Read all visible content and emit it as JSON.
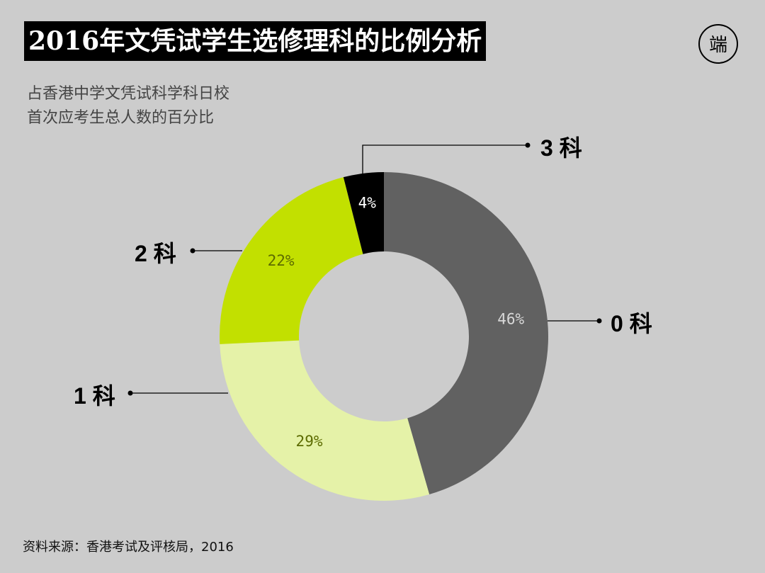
{
  "title": "2016年文凭试学生选修理科的比例分析",
  "subtitle_line1": "占香港中学文凭试科学科日校",
  "subtitle_line2": "首次应考生总人数的百分比",
  "source": "资料来源：香港考试及评核局，2016",
  "logo_text": "端",
  "colors": {
    "background": "#cccccc",
    "zero": "#616161",
    "one": "#e5f2a8",
    "two": "#c2e000",
    "three": "#000000"
  },
  "chart_data": {
    "type": "pie",
    "donut": true,
    "title": "2016年文凭试学生选修理科的比例分析",
    "series": [
      {
        "name": "0 科",
        "value": 46,
        "label": "46%",
        "color": "#616161",
        "label_color": "#d8d8d8"
      },
      {
        "name": "1 科",
        "value": 29,
        "label": "29%",
        "color": "#e5f2a8",
        "label_color": "#5c6b00"
      },
      {
        "name": "2 科",
        "value": 22,
        "label": "22%",
        "color": "#c2e000",
        "label_color": "#5c6b00"
      },
      {
        "name": "3 科",
        "value": 4,
        "label": "4%",
        "color": "#000000",
        "label_color": "#ffffff"
      }
    ]
  }
}
